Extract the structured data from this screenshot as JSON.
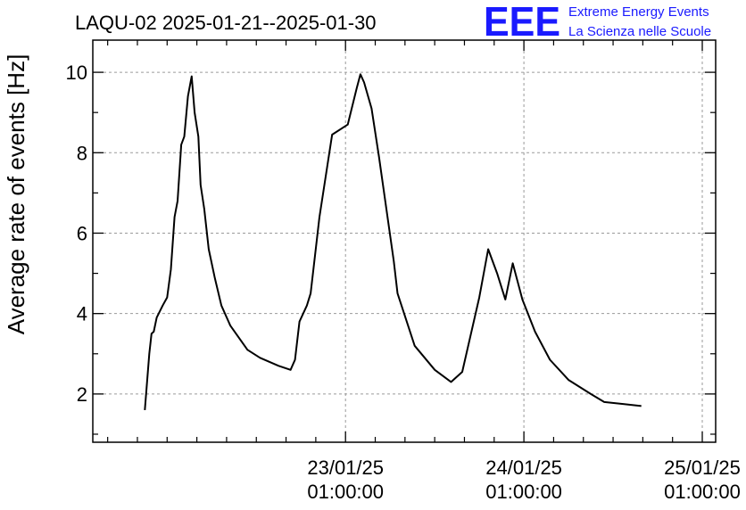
{
  "chart_data": {
    "type": "line",
    "title": "LAQU-02 2025-01-21--2025-01-30",
    "xlabel": "",
    "ylabel": "Average rate of events [Hz]",
    "x_unit": "hours since first point",
    "ylim": [
      0.8,
      10.8
    ],
    "yticks": [
      2,
      4,
      6,
      8,
      10
    ],
    "grid": true,
    "xticks": [
      {
        "hours": 27.0,
        "label_date": "23/01/25",
        "label_time": "01:00:00"
      },
      {
        "hours": 51.0,
        "label_date": "24/01/25",
        "label_time": "01:00:00"
      },
      {
        "hours": 75.0,
        "label_date": "25/01/25",
        "label_time": "01:00:00"
      }
    ],
    "xlim": [
      -7.0,
      76.8
    ],
    "series": [
      {
        "name": "",
        "color": "#000000",
        "points": [
          [
            0.0,
            1.6
          ],
          [
            0.6,
            3.0
          ],
          [
            0.9,
            3.5
          ],
          [
            1.2,
            3.55
          ],
          [
            1.6,
            3.9
          ],
          [
            2.4,
            4.2
          ],
          [
            3.0,
            4.4
          ],
          [
            3.5,
            5.1
          ],
          [
            4.0,
            6.4
          ],
          [
            4.4,
            6.8
          ],
          [
            4.9,
            8.2
          ],
          [
            5.3,
            8.4
          ],
          [
            5.8,
            9.4
          ],
          [
            6.3,
            9.9
          ],
          [
            6.7,
            9.0
          ],
          [
            7.2,
            8.4
          ],
          [
            7.5,
            7.2
          ],
          [
            8.0,
            6.6
          ],
          [
            8.6,
            5.6
          ],
          [
            9.4,
            4.9
          ],
          [
            10.3,
            4.2
          ],
          [
            11.5,
            3.7
          ],
          [
            13.8,
            3.1
          ],
          [
            15.5,
            2.9
          ],
          [
            18.0,
            2.7
          ],
          [
            19.6,
            2.6
          ],
          [
            20.2,
            2.85
          ],
          [
            20.8,
            3.8
          ],
          [
            21.8,
            4.2
          ],
          [
            22.3,
            4.5
          ],
          [
            23.5,
            6.4
          ],
          [
            25.2,
            8.45
          ],
          [
            27.3,
            8.7
          ],
          [
            28.5,
            9.6
          ],
          [
            29.0,
            9.95
          ],
          [
            29.5,
            9.75
          ],
          [
            30.5,
            9.1
          ],
          [
            31.5,
            7.9
          ],
          [
            33.5,
            5.3
          ],
          [
            34.0,
            4.5
          ],
          [
            36.3,
            3.2
          ],
          [
            39.0,
            2.6
          ],
          [
            41.2,
            2.3
          ],
          [
            42.7,
            2.55
          ],
          [
            45.0,
            4.4
          ],
          [
            46.2,
            5.6
          ],
          [
            47.4,
            5.0
          ],
          [
            48.5,
            4.35
          ],
          [
            49.5,
            5.25
          ],
          [
            50.8,
            4.35
          ],
          [
            52.5,
            3.55
          ],
          [
            54.5,
            2.85
          ],
          [
            57.0,
            2.35
          ],
          [
            60.0,
            2.0
          ],
          [
            61.8,
            1.8
          ],
          [
            64.5,
            1.75
          ],
          [
            66.8,
            1.7
          ]
        ]
      }
    ]
  },
  "logo": {
    "mark": "EEE",
    "line1": "Extreme Energy Events",
    "line2": "La Scienza nelle Scuole",
    "color": "#1a1aff"
  }
}
